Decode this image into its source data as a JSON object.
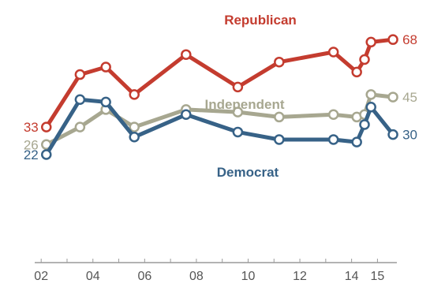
{
  "chart_data": {
    "type": "line",
    "xlabel": "",
    "ylabel": "",
    "x_ticks": [
      "02",
      "04",
      "06",
      "08",
      "10",
      "12",
      "14",
      "15"
    ],
    "x_tick_values": [
      2002,
      2004,
      2006,
      2008,
      2010,
      2012,
      2014,
      2015
    ],
    "xlim": [
      2001.75,
      2015.75
    ],
    "ylim": [
      10,
      75
    ],
    "grid": false,
    "legend": "inline labels",
    "series": [
      {
        "name": "Republican",
        "color": "#c43c2f",
        "x": [
          2002.2,
          2003.5,
          2004.5,
          2005.6,
          2007.6,
          2009.6,
          2011.2,
          2013.3,
          2014.2,
          2014.5,
          2014.75,
          2015.6
        ],
        "values": [
          33,
          54,
          57,
          46,
          62,
          49,
          59,
          63,
          55,
          60,
          67,
          68
        ],
        "start_label": "33",
        "end_label": "68"
      },
      {
        "name": "Independent",
        "color": "#a7a790",
        "x": [
          2002.2,
          2003.5,
          2004.5,
          2005.6,
          2007.6,
          2009.6,
          2011.2,
          2013.3,
          2014.2,
          2014.5,
          2014.75,
          2015.6
        ],
        "values": [
          26,
          33,
          40,
          33,
          40,
          39,
          37,
          38,
          37,
          38,
          46,
          45
        ],
        "start_label": "26",
        "end_label": "45"
      },
      {
        "name": "Democrat",
        "color": "#376287",
        "x": [
          2002.2,
          2003.5,
          2004.5,
          2005.6,
          2007.6,
          2009.6,
          2011.2,
          2013.3,
          2014.2,
          2014.5,
          2014.75,
          2015.6
        ],
        "values": [
          22,
          44,
          43,
          29,
          38,
          31,
          28,
          28,
          27,
          34,
          41,
          30
        ],
        "start_label": "22",
        "end_label": "30"
      }
    ]
  }
}
